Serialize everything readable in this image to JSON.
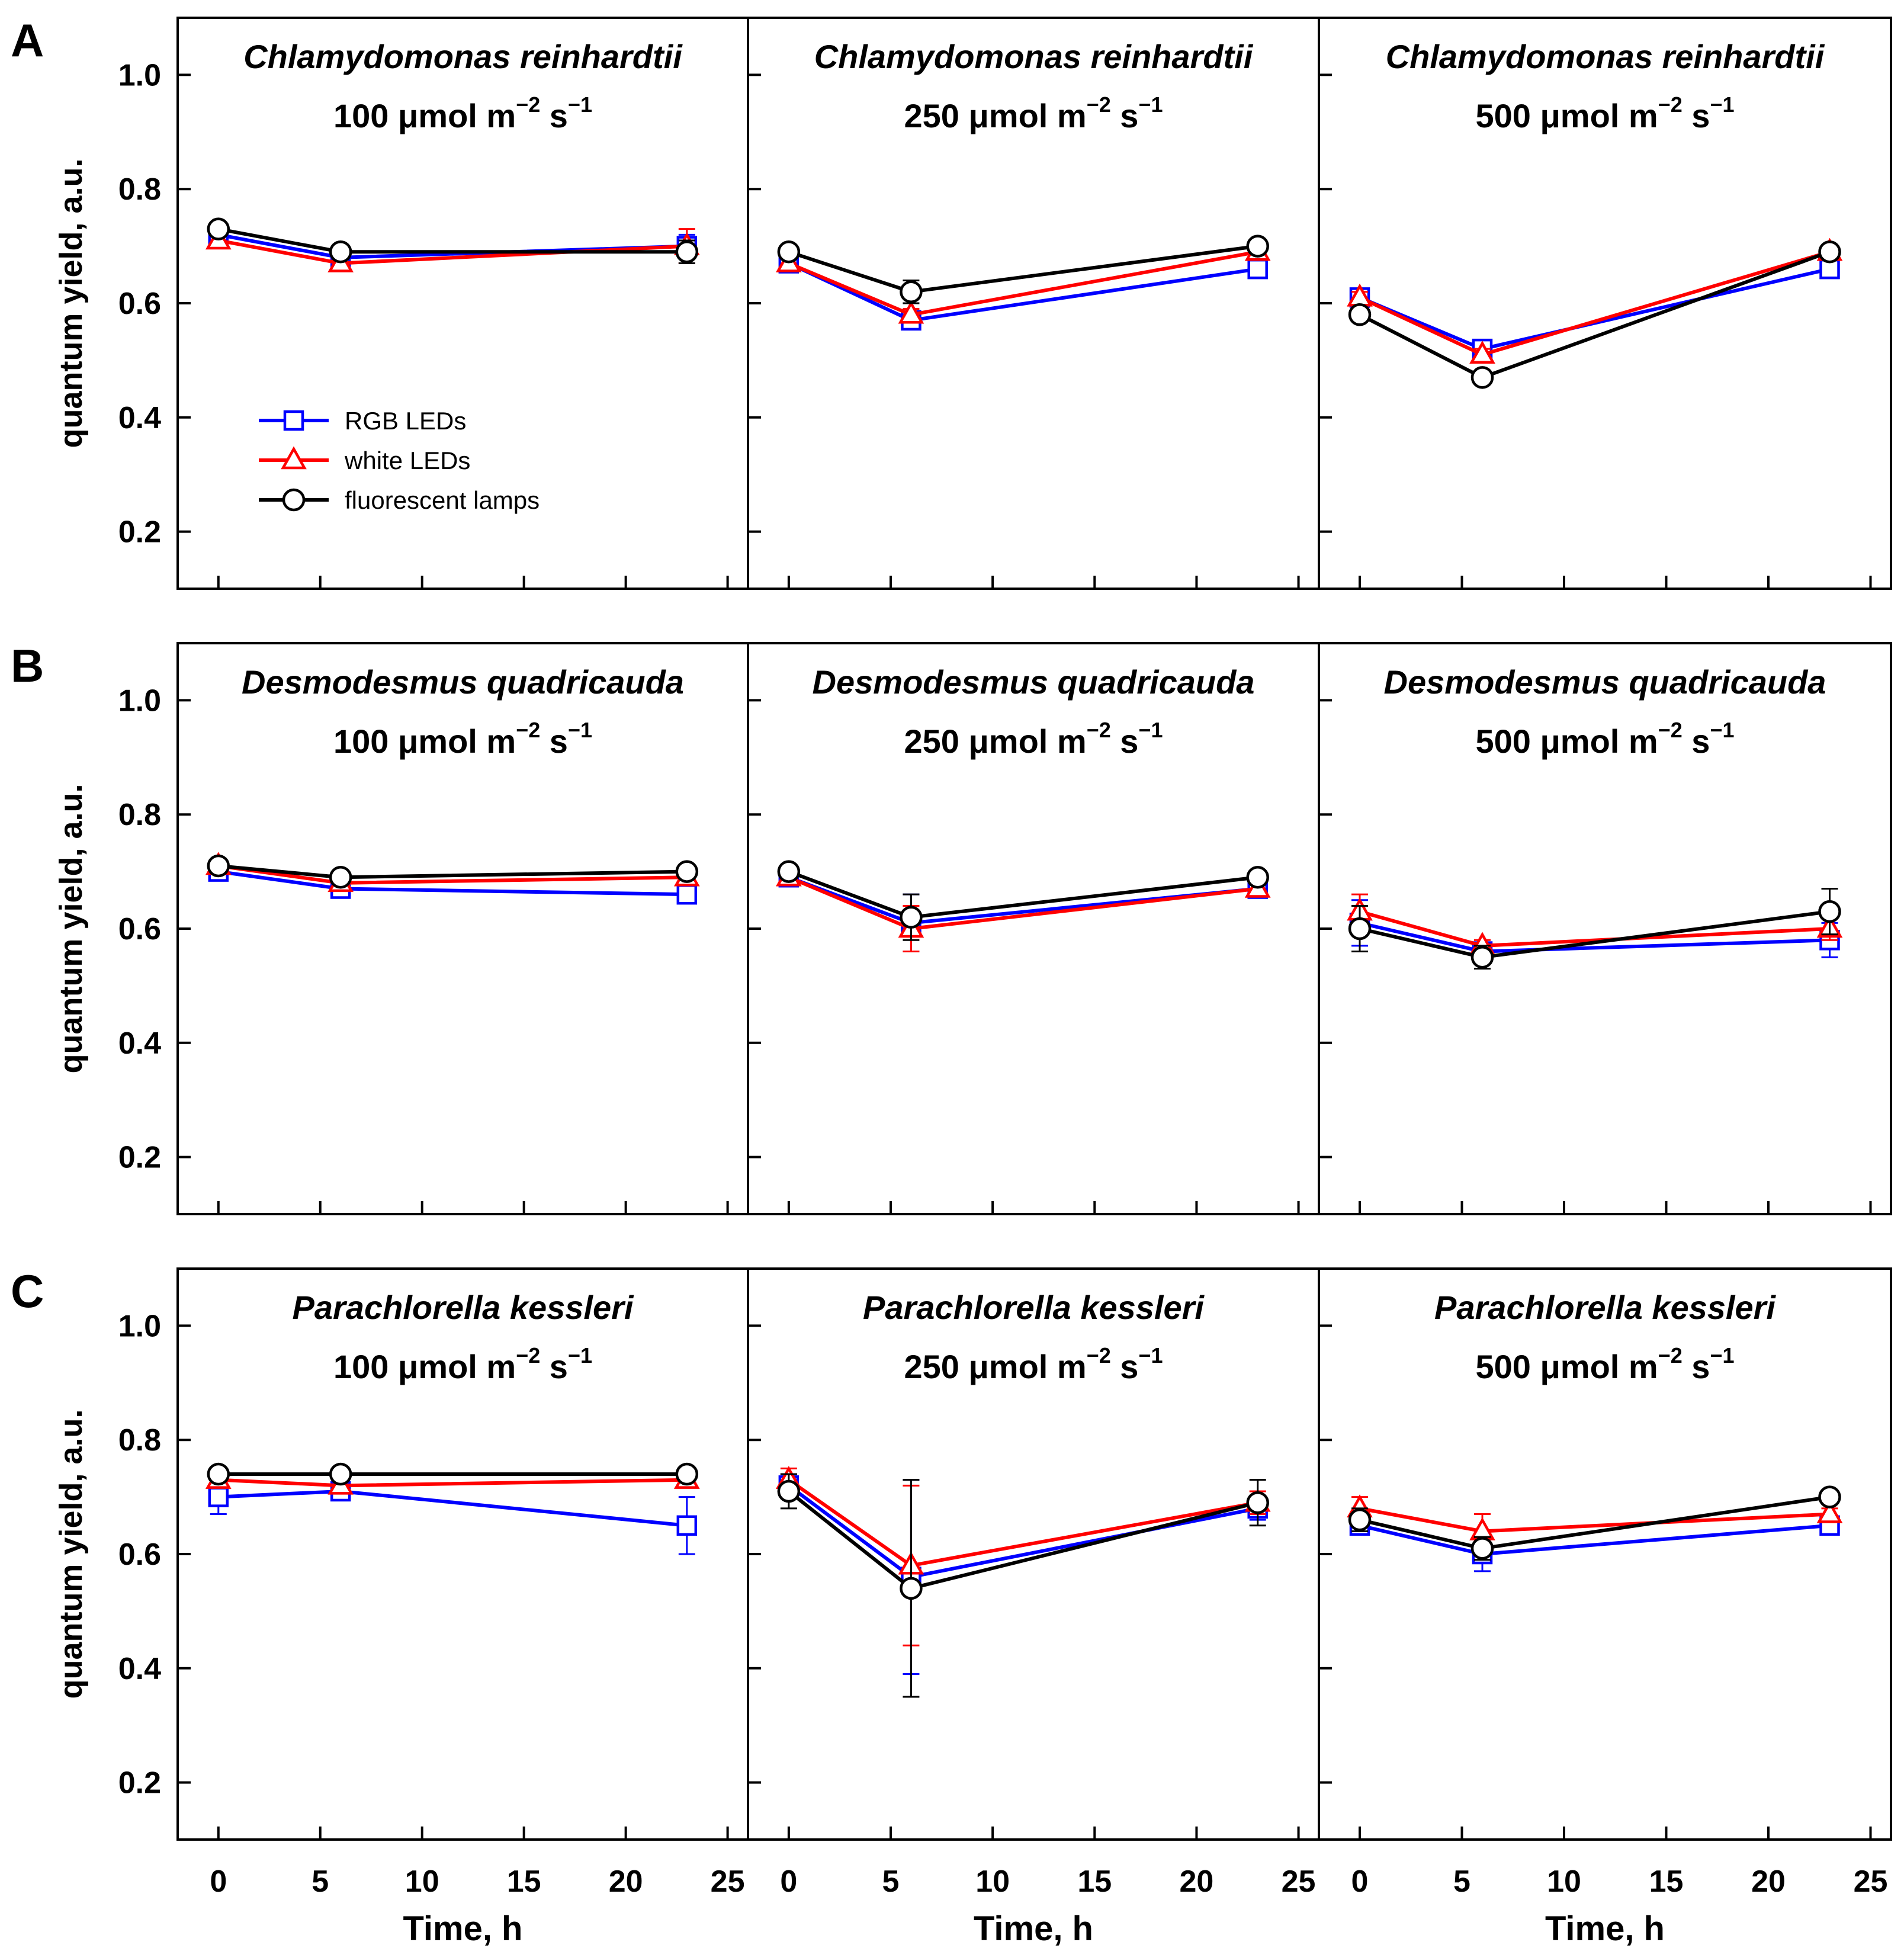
{
  "chart_data": {
    "type": "line",
    "y_label": "quantum yield, a.u.",
    "x_label": "Time, h",
    "x_ticks": [
      0,
      5,
      10,
      15,
      20,
      25
    ],
    "y_ticks": [
      "0.2",
      "0.4",
      "0.6",
      "0.8",
      "1.0"
    ],
    "xlim": [
      -2,
      26
    ],
    "ylim": [
      0.1,
      1.1
    ],
    "legend": {
      "placement": "panel A1, lower-left",
      "entries": [
        {
          "name": "RGB LEDs",
          "color": "#0000ff",
          "marker": "square"
        },
        {
          "name": "white LEDs",
          "color": "#ff0000",
          "marker": "triangle"
        },
        {
          "name": "fluorescent lamps",
          "color": "#000000",
          "marker": "circle"
        }
      ]
    },
    "irradiance_unit": "μmol m",
    "irradiance_exp1": "−2",
    "irradiance_s": " s",
    "irradiance_exp2": "−1",
    "rows": [
      {
        "letter": "A",
        "species": "Chlamydomonas reinhardtii",
        "panels": [
          {
            "irradiance": "100",
            "x": [
              0,
              6,
              23
            ],
            "series": [
              {
                "name": "RGB LEDs",
                "values": [
                  0.72,
                  0.68,
                  0.7
                ],
                "errors": [
                  0.01,
                  0.01,
                  0.02
                ]
              },
              {
                "name": "white LEDs",
                "values": [
                  0.71,
                  0.67,
                  0.7
                ],
                "errors": [
                  0.01,
                  0.01,
                  0.03
                ]
              },
              {
                "name": "fluorescent lamps",
                "values": [
                  0.73,
                  0.69,
                  0.69
                ],
                "errors": [
                  0.01,
                  0.01,
                  0.02
                ]
              }
            ]
          },
          {
            "irradiance": "250",
            "x": [
              0,
              6,
              23
            ],
            "series": [
              {
                "name": "RGB LEDs",
                "values": [
                  0.67,
                  0.57,
                  0.66
                ],
                "errors": [
                  0.01,
                  0.01,
                  0.01
                ]
              },
              {
                "name": "white LEDs",
                "values": [
                  0.67,
                  0.58,
                  0.69
                ],
                "errors": [
                  0.01,
                  0.01,
                  0.01
                ]
              },
              {
                "name": "fluorescent lamps",
                "values": [
                  0.69,
                  0.62,
                  0.7
                ],
                "errors": [
                  0.01,
                  0.02,
                  0.01
                ]
              }
            ]
          },
          {
            "irradiance": "500",
            "x": [
              0,
              6,
              23
            ],
            "series": [
              {
                "name": "RGB LEDs",
                "values": [
                  0.61,
                  0.52,
                  0.66
                ],
                "errors": [
                  0.01,
                  0.01,
                  0.01
                ]
              },
              {
                "name": "white LEDs",
                "values": [
                  0.61,
                  0.51,
                  0.69
                ],
                "errors": [
                  0.01,
                  0.01,
                  0.01
                ]
              },
              {
                "name": "fluorescent lamps",
                "values": [
                  0.58,
                  0.47,
                  0.69
                ],
                "errors": [
                  0.01,
                  0.01,
                  0.01
                ]
              }
            ]
          }
        ]
      },
      {
        "letter": "B",
        "species": "Desmodesmus quadricauda",
        "panels": [
          {
            "irradiance": "100",
            "x": [
              0,
              6,
              23
            ],
            "series": [
              {
                "name": "RGB LEDs",
                "values": [
                  0.7,
                  0.67,
                  0.66
                ],
                "errors": [
                  0.01,
                  0.01,
                  0.01
                ]
              },
              {
                "name": "white LEDs",
                "values": [
                  0.71,
                  0.68,
                  0.69
                ],
                "errors": [
                  0.01,
                  0.01,
                  0.01
                ]
              },
              {
                "name": "fluorescent lamps",
                "values": [
                  0.71,
                  0.69,
                  0.7
                ],
                "errors": [
                  0.01,
                  0.01,
                  0.01
                ]
              }
            ]
          },
          {
            "irradiance": "250",
            "x": [
              0,
              6,
              23
            ],
            "series": [
              {
                "name": "RGB LEDs",
                "values": [
                  0.69,
                  0.61,
                  0.67
                ],
                "errors": [
                  0.01,
                  0.05,
                  0.01
                ]
              },
              {
                "name": "white LEDs",
                "values": [
                  0.69,
                  0.6,
                  0.67
                ],
                "errors": [
                  0.01,
                  0.04,
                  0.01
                ]
              },
              {
                "name": "fluorescent lamps",
                "values": [
                  0.7,
                  0.62,
                  0.69
                ],
                "errors": [
                  0.01,
                  0.04,
                  0.01
                ]
              }
            ]
          },
          {
            "irradiance": "500",
            "x": [
              0,
              6,
              23
            ],
            "series": [
              {
                "name": "RGB LEDs",
                "values": [
                  0.61,
                  0.56,
                  0.58
                ],
                "errors": [
                  0.04,
                  0.01,
                  0.03
                ]
              },
              {
                "name": "white LEDs",
                "values": [
                  0.63,
                  0.57,
                  0.6
                ],
                "errors": [
                  0.03,
                  0.01,
                  0.02
                ]
              },
              {
                "name": "fluorescent lamps",
                "values": [
                  0.6,
                  0.55,
                  0.63
                ],
                "errors": [
                  0.04,
                  0.02,
                  0.04
                ]
              }
            ]
          }
        ]
      },
      {
        "letter": "C",
        "species": "Parachlorella kessleri",
        "panels": [
          {
            "irradiance": "100",
            "x": [
              0,
              6,
              23
            ],
            "series": [
              {
                "name": "RGB LEDs",
                "values": [
                  0.7,
                  0.71,
                  0.65
                ],
                "errors": [
                  0.03,
                  0.01,
                  0.05
                ]
              },
              {
                "name": "white LEDs",
                "values": [
                  0.73,
                  0.72,
                  0.73
                ],
                "errors": [
                  0.01,
                  0.01,
                  0.01
                ]
              },
              {
                "name": "fluorescent lamps",
                "values": [
                  0.74,
                  0.74,
                  0.74
                ],
                "errors": [
                  0.01,
                  0.01,
                  0.01
                ]
              }
            ]
          },
          {
            "irradiance": "250",
            "x": [
              0,
              6,
              23
            ],
            "series": [
              {
                "name": "RGB LEDs",
                "values": [
                  0.72,
                  0.56,
                  0.68
                ],
                "errors": [
                  0.02,
                  0.17,
                  0.02
                ]
              },
              {
                "name": "white LEDs",
                "values": [
                  0.73,
                  0.58,
                  0.69
                ],
                "errors": [
                  0.02,
                  0.14,
                  0.02
                ]
              },
              {
                "name": "fluorescent lamps",
                "values": [
                  0.71,
                  0.54,
                  0.69
                ],
                "errors": [
                  0.03,
                  0.19,
                  0.04
                ]
              }
            ]
          },
          {
            "irradiance": "500",
            "x": [
              0,
              6,
              23
            ],
            "series": [
              {
                "name": "RGB LEDs",
                "values": [
                  0.65,
                  0.6,
                  0.65
                ],
                "errors": [
                  0.01,
                  0.03,
                  0.01
                ]
              },
              {
                "name": "white LEDs",
                "values": [
                  0.68,
                  0.64,
                  0.67
                ],
                "errors": [
                  0.02,
                  0.03,
                  0.01
                ]
              },
              {
                "name": "fluorescent lamps",
                "values": [
                  0.66,
                  0.61,
                  0.7
                ],
                "errors": [
                  0.02,
                  0.02,
                  0.01
                ]
              }
            ]
          }
        ]
      }
    ]
  }
}
